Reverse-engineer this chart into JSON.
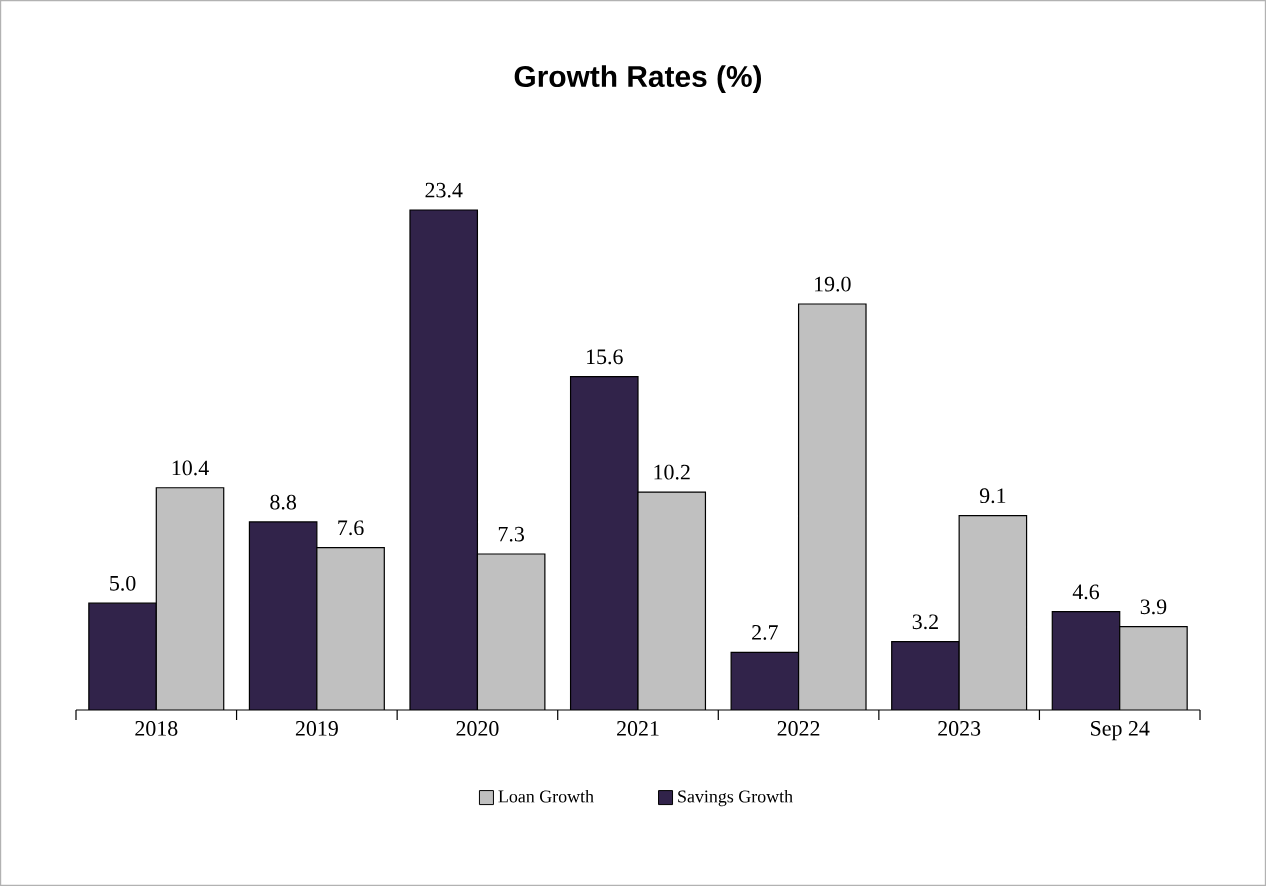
{
  "chart_data": {
    "type": "bar",
    "title": "Growth Rates (%)",
    "categories": [
      "2018",
      "2019",
      "2020",
      "2021",
      "2022",
      "2023",
      "Sep 24"
    ],
    "series": [
      {
        "name": "Savings Growth",
        "color": "#31234a",
        "values": [
          5.0,
          8.8,
          23.4,
          15.6,
          2.7,
          3.2,
          4.6
        ],
        "value_labels": [
          "5.0",
          "8.8",
          "23.4",
          "15.6",
          "2.7",
          "3.2",
          "4.6"
        ]
      },
      {
        "name": "Loan Growth",
        "color": "#c0c0c0",
        "values": [
          10.4,
          7.6,
          7.3,
          10.2,
          19.0,
          9.1,
          3.9
        ],
        "value_labels": [
          "10.4",
          "7.6",
          "7.3",
          "10.2",
          "19.0",
          "9.1",
          "3.9"
        ]
      }
    ],
    "legend": "bottom"
  }
}
